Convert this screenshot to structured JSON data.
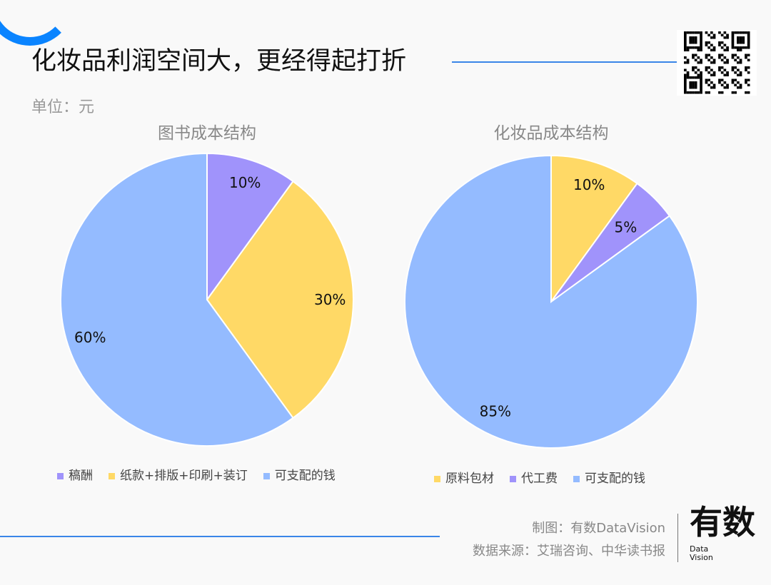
{
  "header": {
    "title": "化妆品利润空间大，更经得起打折",
    "unit": "单位：元",
    "qr_logo": "有数"
  },
  "footer": {
    "credit": "制图：有数DataVision",
    "source": "数据来源：艾瑞咨询、中华读书报",
    "logo": "有数",
    "logo_sub1": "Data",
    "logo_sub2": "Vision"
  },
  "colors": {
    "purple": "#a093fb",
    "yellow": "#ffd966",
    "blue": "#94bbff",
    "accent": "#0a84ff"
  },
  "chart_data": [
    {
      "type": "pie",
      "title": "图书成本结构",
      "categories": [
        "稿酬",
        "纸款+排版+印刷+装订",
        "可支配的钱"
      ],
      "values": [
        10,
        30,
        60
      ],
      "labels": [
        "10%",
        "30%",
        "60%"
      ],
      "colors": [
        "#a093fb",
        "#ffd966",
        "#94bbff"
      ],
      "legend": "bottom"
    },
    {
      "type": "pie",
      "title": "化妆品成本结构",
      "categories": [
        "原料包材",
        "代工费",
        "可支配的钱"
      ],
      "values": [
        10,
        5,
        85
      ],
      "labels": [
        "10%",
        "5%",
        "85%"
      ],
      "colors": [
        "#ffd966",
        "#a093fb",
        "#94bbff"
      ],
      "legend": "bottom"
    }
  ]
}
